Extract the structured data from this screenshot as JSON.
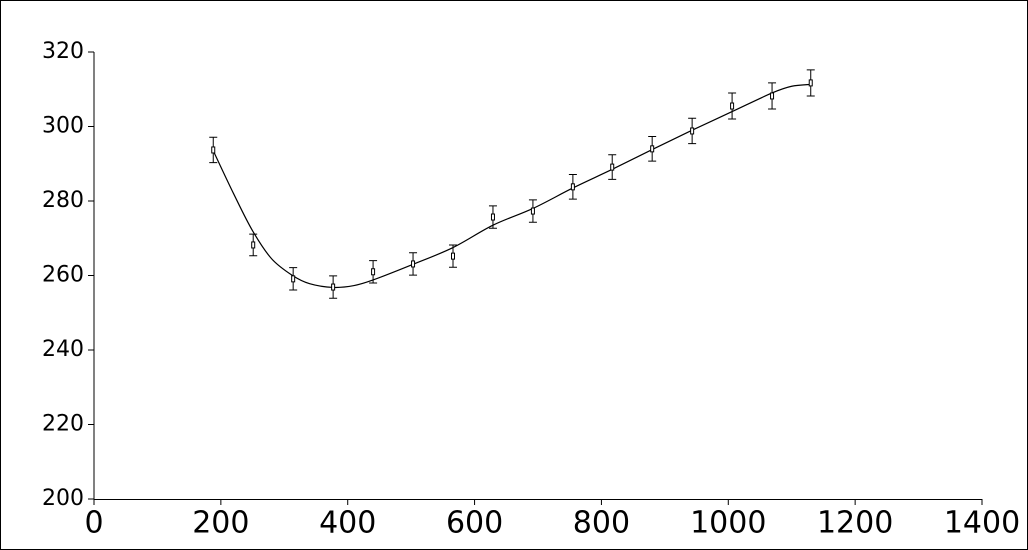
{
  "chart_data": {
    "type": "scatter",
    "series": [
      {
        "color": "#000000",
        "x": [
          188,
          251,
          314,
          377,
          440,
          503,
          566,
          629,
          692,
          755,
          817,
          880,
          943,
          1006,
          1069,
          1130
        ],
        "values": [
          293.7,
          268.2,
          259.1,
          256.9,
          261.0,
          263.1,
          265.2,
          275.7,
          277.3,
          283.8,
          289.1,
          294.0,
          298.8,
          305.5,
          308.2,
          311.7
        ],
        "errors": [
          3.4,
          2.9,
          3.0,
          3.0,
          3.0,
          3.0,
          3.0,
          3.0,
          3.0,
          3.3,
          3.3,
          3.3,
          3.4,
          3.5,
          3.5,
          3.5
        ]
      }
    ],
    "fit": {
      "color": "#000000",
      "x": [
        188,
        220,
        250,
        280,
        313,
        340,
        377,
        410,
        440,
        503,
        566,
        629,
        692,
        755,
        817,
        880,
        943,
        1006,
        1069,
        1100,
        1130
      ],
      "values": [
        293.5,
        282,
        272,
        264.5,
        260,
        257.8,
        256.8,
        257.3,
        258.8,
        263,
        267.5,
        273.5,
        278,
        283.5,
        288.5,
        293.8,
        299,
        304,
        309,
        310.8,
        311.3
      ]
    },
    "xlim": [
      0,
      1400
    ],
    "xticks": [
      0,
      200,
      400,
      600,
      800,
      1000,
      1200,
      1400
    ],
    "ylim": [
      200,
      320
    ],
    "yticks": [
      200,
      220,
      240,
      260,
      280,
      300,
      320
    ]
  }
}
